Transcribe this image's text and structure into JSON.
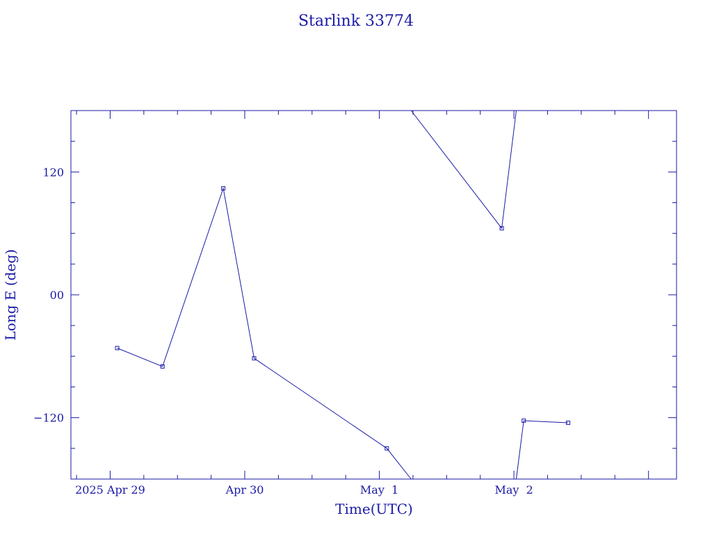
{
  "chart_data": {
    "type": "line",
    "title": "Starlink 33774",
    "xlabel": "Time(UTC)",
    "ylabel": "Long E (deg)",
    "x_tick_labels": [
      "2025 Apr 29",
      "Apr 30",
      "May  1",
      "May  2"
    ],
    "x_tick_values": [
      "2025-04-29",
      "2025-04-30",
      "2025-05-01",
      "2025-05-02"
    ],
    "xlim": [
      "2025-04-28 17:00",
      "2025-05-03 05:00"
    ],
    "y_tick_labels": [
      "120",
      "00",
      "−120"
    ],
    "y_tick_values": [
      120,
      0,
      -120
    ],
    "ylim": [
      -180,
      180
    ],
    "grid": false,
    "color": "#1a1aa6",
    "series": [
      {
        "points": [
          {
            "t": "2025-04-29 01:15",
            "lon": -52
          },
          {
            "t": "2025-04-29 09:20",
            "lon": -70
          },
          {
            "t": "2025-04-29 20:10",
            "lon": 104
          },
          {
            "t": "2025-04-30 01:40",
            "lon": -62
          },
          {
            "t": "2025-05-01 01:20",
            "lon": -150
          },
          {
            "t": "2025-05-01 05:40",
            "lon": -180
          }
        ]
      },
      {
        "points": [
          {
            "t": "2025-05-01 05:40",
            "lon": 180
          },
          {
            "t": "2025-05-01 21:50",
            "lon": 65
          },
          {
            "t": "2025-05-02 00:25",
            "lon": 180
          }
        ]
      },
      {
        "points": [
          {
            "t": "2025-05-02 00:25",
            "lon": -180
          },
          {
            "t": "2025-05-02 01:45",
            "lon": -123
          },
          {
            "t": "2025-05-02 09:40",
            "lon": -125
          }
        ]
      }
    ]
  }
}
